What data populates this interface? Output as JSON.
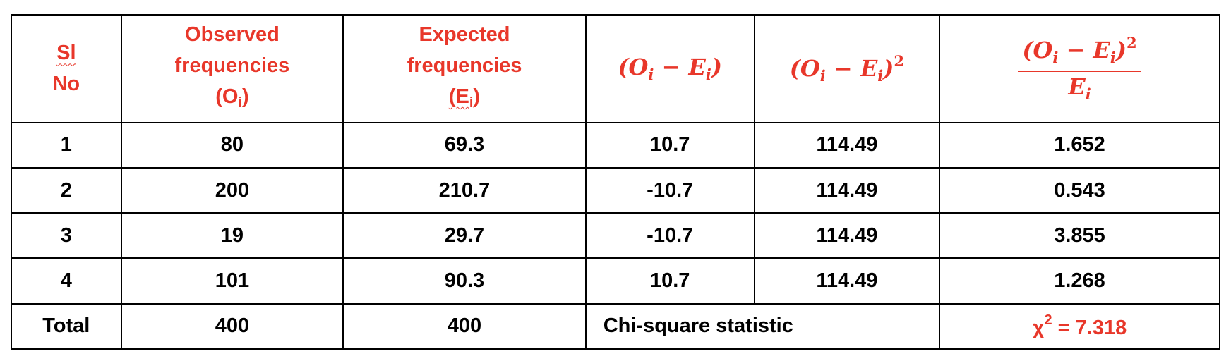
{
  "header": {
    "sl_no": [
      "Sl",
      "No"
    ],
    "observed": [
      "Observed",
      "frequencies",
      "(O",
      "i",
      ")"
    ],
    "expected": [
      "Expected",
      "frequencies",
      "(E",
      "i",
      ")"
    ],
    "diff": {
      "open": "(O",
      "sub1": "i",
      "minus": " − E",
      "sub2": "i",
      "close": ")"
    },
    "diff_sq": {
      "open": "(O",
      "sub1": "i",
      "minus": " − E",
      "sub2": "i",
      "close": ")",
      "exp": "2"
    },
    "ratio": {
      "num_open": "(O",
      "num_sub1": "i",
      "num_minus": " − E",
      "num_sub2": "i",
      "num_close": ")",
      "num_exp": "2",
      "den": "E",
      "den_sub": "i"
    }
  },
  "rows": [
    {
      "sl": "1",
      "obs": "80",
      "exp": "69.3",
      "diff": "10.7",
      "diff_sq": "114.49",
      "ratio": "1.652"
    },
    {
      "sl": "2",
      "obs": "200",
      "exp": "210.7",
      "diff": "-10.7",
      "diff_sq": "114.49",
      "ratio": "0.543"
    },
    {
      "sl": "3",
      "obs": "19",
      "exp": "29.7",
      "diff": "-10.7",
      "diff_sq": "114.49",
      "ratio": "3.855"
    },
    {
      "sl": "4",
      "obs": "101",
      "exp": "90.3",
      "diff": "10.7",
      "diff_sq": "114.49",
      "ratio": "1.268"
    }
  ],
  "total": {
    "label": "Total",
    "obs": "400",
    "exp": "400",
    "stat_label": "Chi-square statistic",
    "chi_symbol": "χ",
    "chi_exp": "2",
    "chi_value": " = 7.318"
  },
  "colors": {
    "accent": "#e8372a",
    "text": "#000000",
    "border": "#000000"
  }
}
